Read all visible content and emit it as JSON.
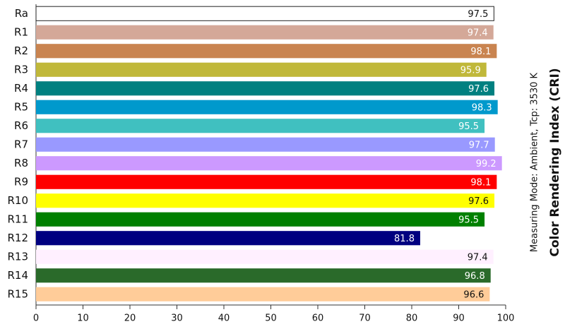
{
  "chart_data": {
    "type": "bar",
    "orientation": "horizontal",
    "title": "Color Rendering Index (CRI)",
    "subtitle": "Measuring Mode: Ambient, Tcp: 3530 K",
    "categories": [
      "Ra",
      "R1",
      "R2",
      "R3",
      "R4",
      "R5",
      "R6",
      "R7",
      "R8",
      "R9",
      "R10",
      "R11",
      "R12",
      "R13",
      "R14",
      "R15"
    ],
    "values": [
      97.5,
      97.4,
      98.1,
      95.9,
      97.6,
      98.3,
      95.5,
      97.7,
      99.2,
      98.1,
      97.6,
      95.5,
      81.8,
      97.4,
      96.8,
      96.6
    ],
    "colors": [
      "#ffffff",
      "#d4a898",
      "#c98450",
      "#c0b83a",
      "#008080",
      "#0099cc",
      "#40c0c0",
      "#9999ff",
      "#cc99ff",
      "#ff0000",
      "#ffff00",
      "#008000",
      "#000080",
      "#fff0ff",
      "#2a6a2a",
      "#ffcc99"
    ],
    "xlim": [
      0,
      100
    ],
    "xticks": [
      0,
      10,
      20,
      30,
      40,
      50,
      60,
      70,
      80,
      90,
      100
    ]
  }
}
